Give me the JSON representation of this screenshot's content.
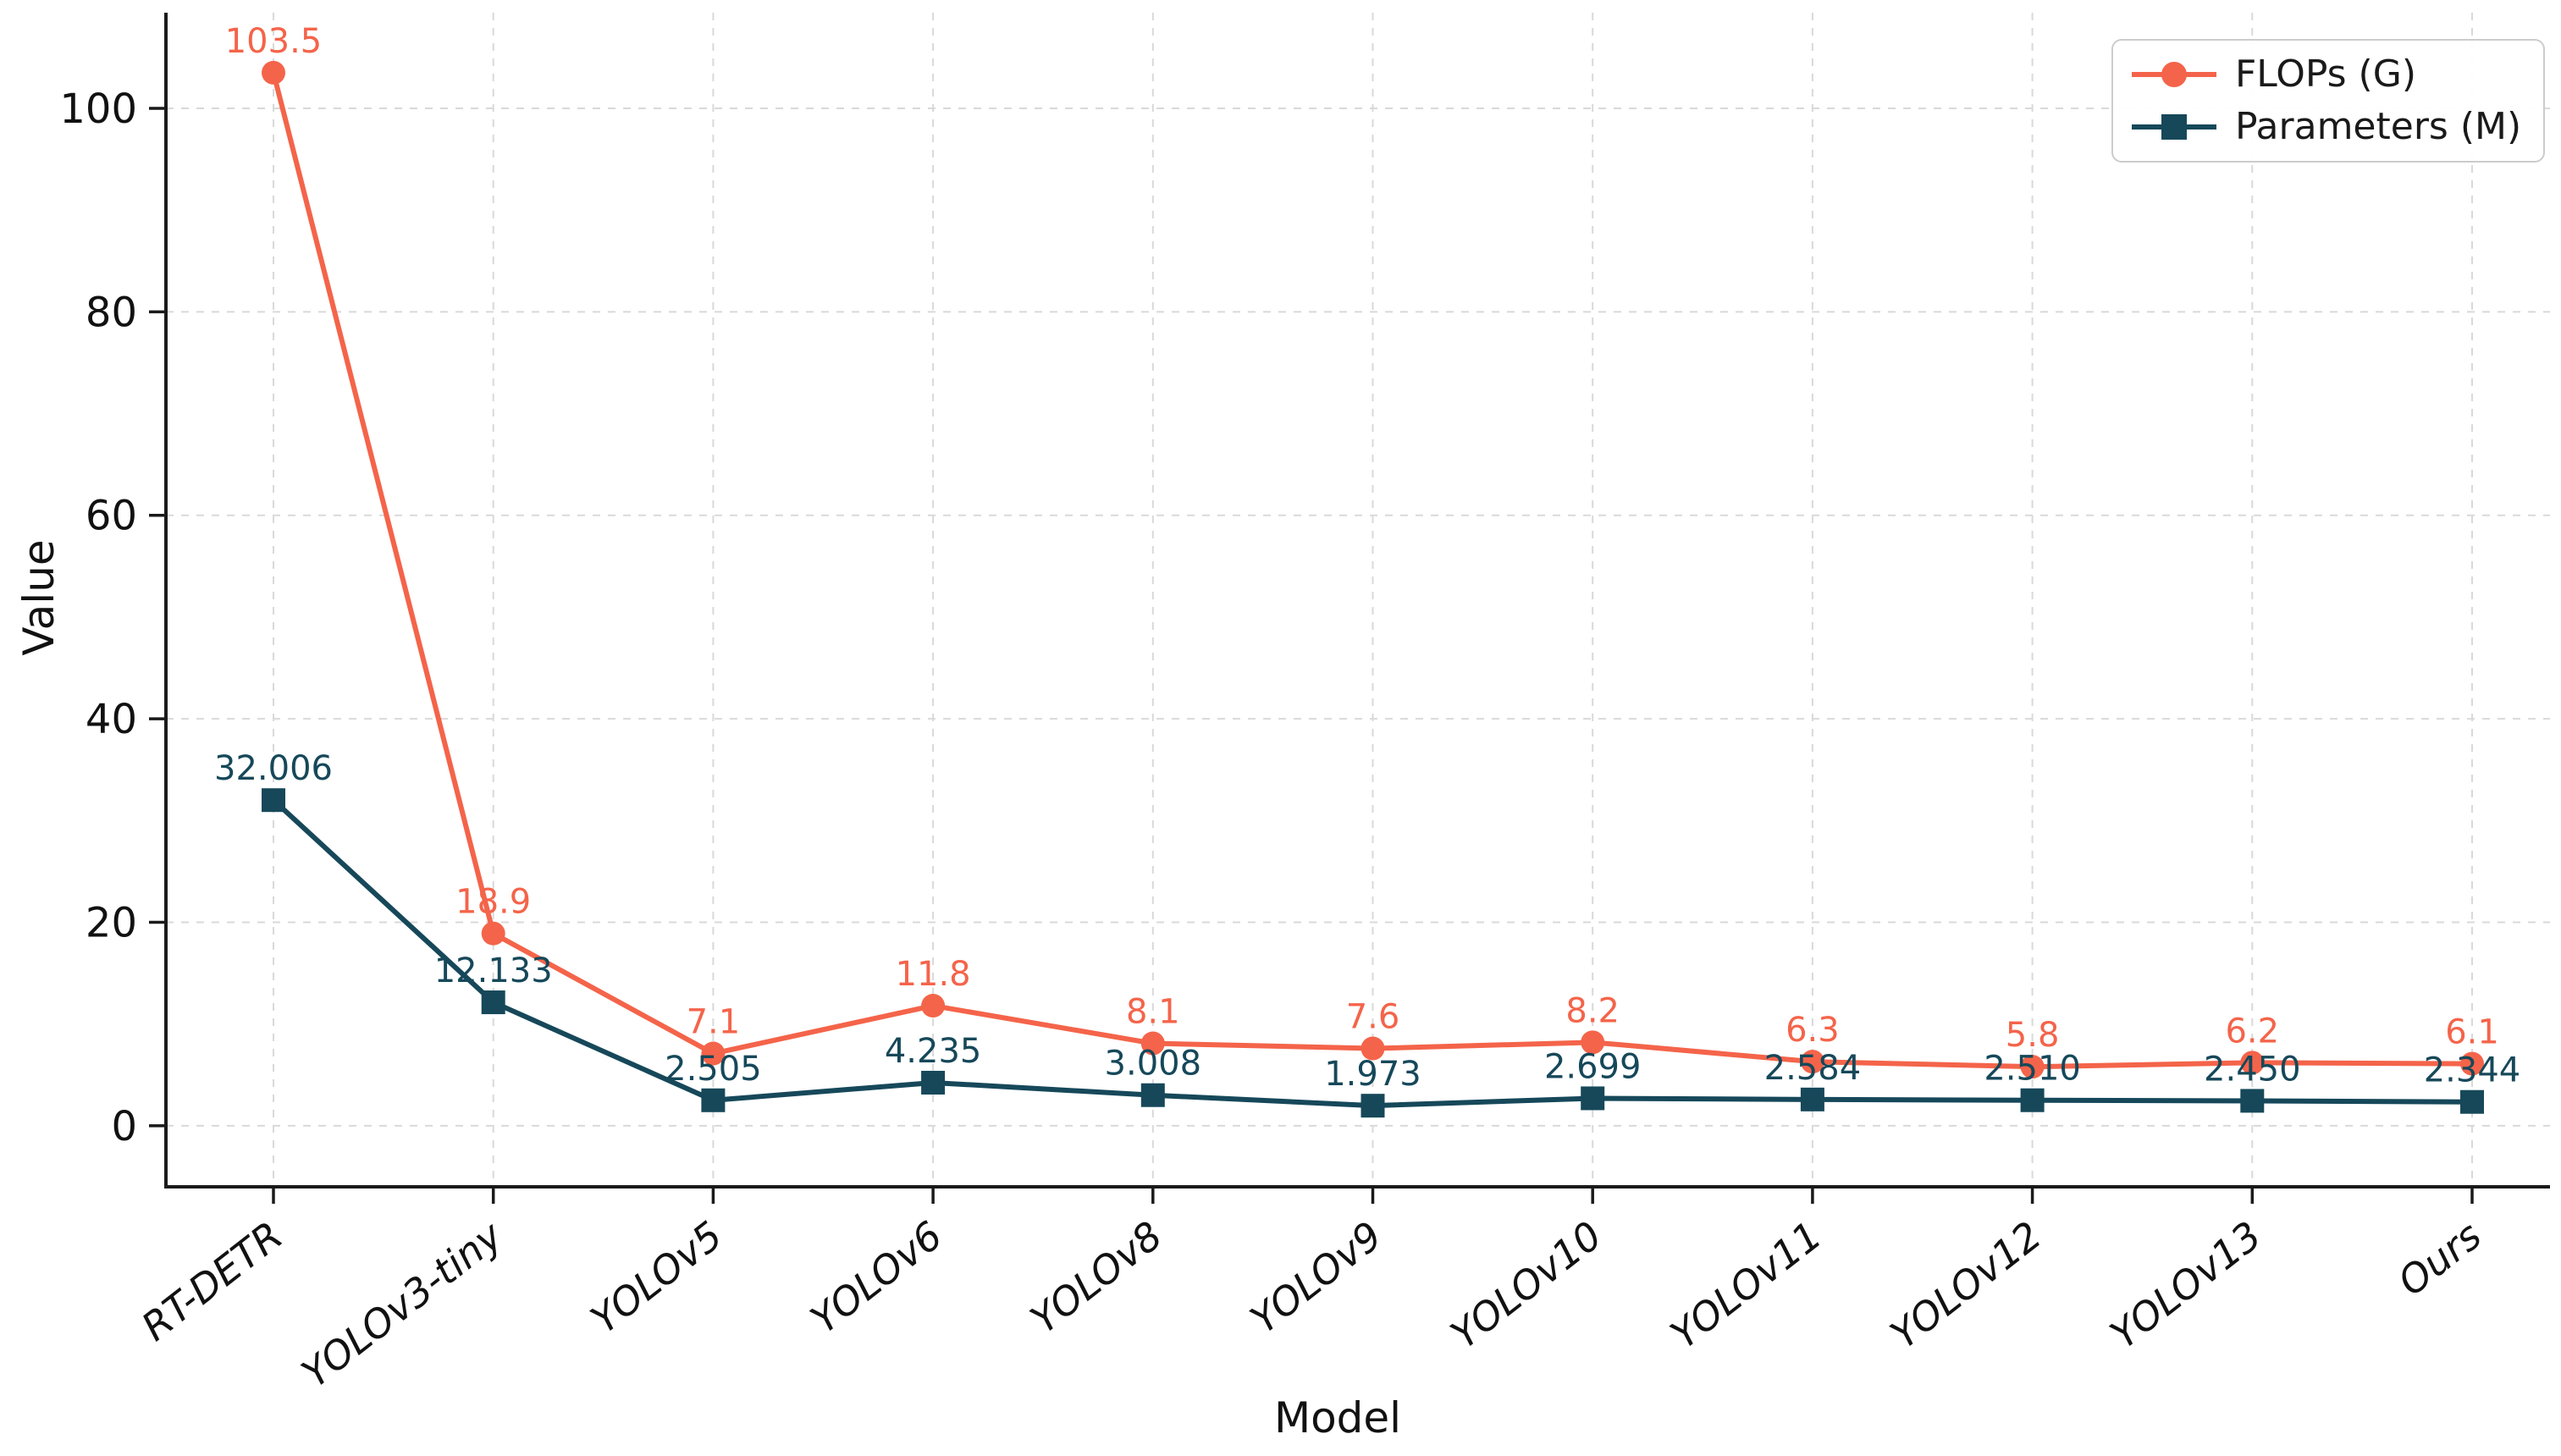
{
  "chart_data": {
    "type": "line",
    "title": "",
    "xlabel": "Model",
    "ylabel": "Value",
    "categories": [
      "RT-DETR",
      "YOLOv3-tiny",
      "YOLOv5",
      "YOLOv6",
      "YOLOv8",
      "YOLOv9",
      "YOLOv10",
      "YOLOv11",
      "YOLOv12",
      "YOLOv13",
      "Ours"
    ],
    "series": [
      {
        "name": "FLOPs (G)",
        "marker": "circle",
        "color": "#F4644A",
        "values": [
          103.5,
          18.9,
          7.1,
          11.8,
          8.1,
          7.6,
          8.2,
          6.3,
          5.8,
          6.2,
          6.1
        ],
        "labels": [
          "103.5",
          "18.9",
          "7.1",
          "11.8",
          "8.1",
          "7.6",
          "8.2",
          "6.3",
          "5.8",
          "6.2",
          "6.1"
        ]
      },
      {
        "name": "Parameters (M)",
        "marker": "square",
        "color": "#16485A",
        "values": [
          32.006,
          12.133,
          2.505,
          4.235,
          3.008,
          1.973,
          2.699,
          2.584,
          2.51,
          2.45,
          2.344
        ],
        "labels": [
          "32.006",
          "12.133",
          "2.505",
          "4.235",
          "3.008",
          "1.973",
          "2.699",
          "2.584",
          "2.510",
          "2.450",
          "2.344"
        ]
      }
    ],
    "yticks": [
      0,
      20,
      40,
      60,
      80,
      100
    ],
    "ylim": [
      -6,
      109.4
    ],
    "grid": true,
    "grid_style": "dashed",
    "legend_position": "upper right",
    "tick_label_style": "italic-rotated",
    "colors": {
      "grid": "#d9d9d9",
      "spine": "#1a1a1a",
      "tick_text": "#111111",
      "background": "#ffffff"
    }
  }
}
